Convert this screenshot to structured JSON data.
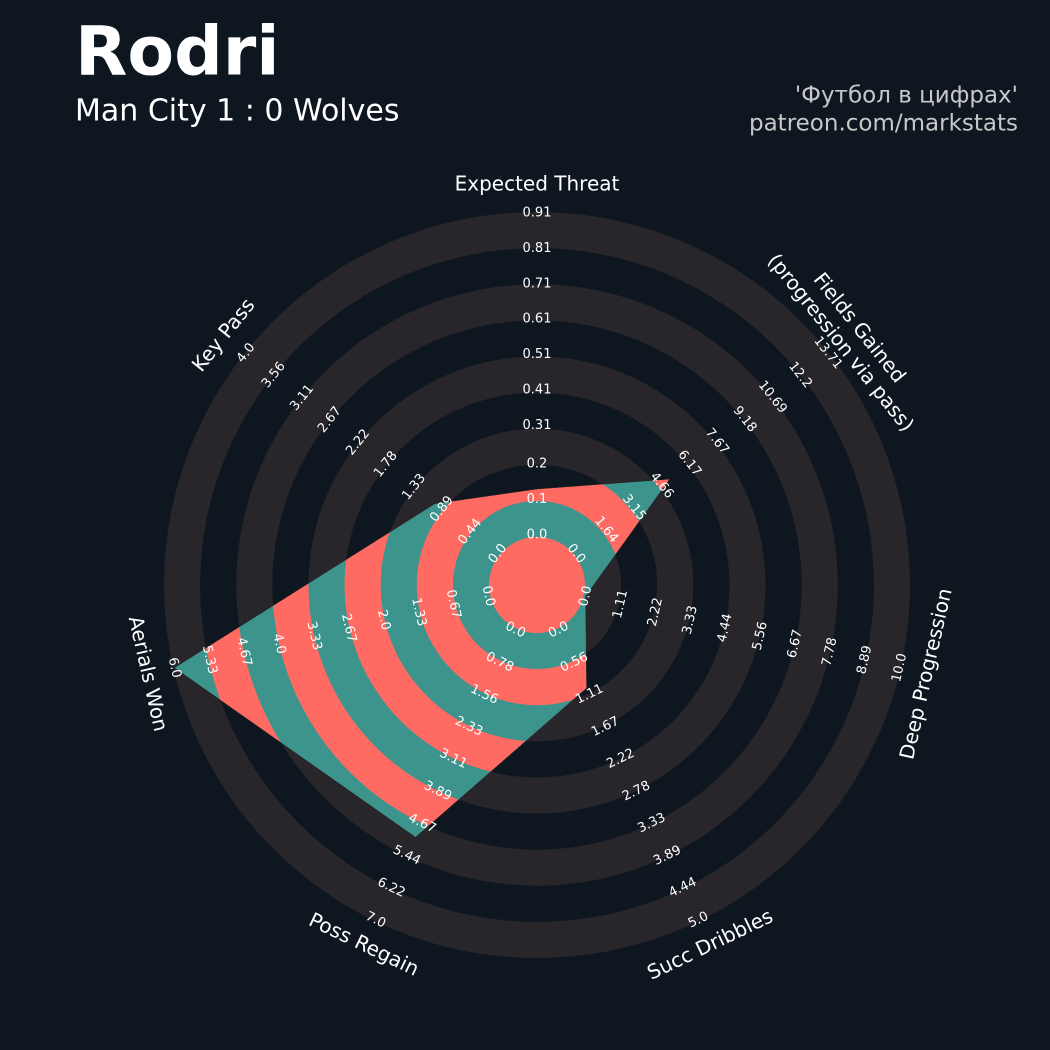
{
  "chart_data": {
    "type": "radar",
    "title": "Rodri",
    "subtitle": "Man City 1 : 0 Wolves",
    "credits": [
      "'Футбол в цифрах'",
      "patreon.com/markstats"
    ],
    "params": [
      "Expected Threat",
      "Fields Gained\n(progression via pass)",
      "Deep Progression",
      "Succ Dribbles",
      "Poss Regain",
      "Aerials Won",
      "Key Pass"
    ],
    "values": [
      0.13,
      5.1,
      0,
      1.0,
      5.0,
      6.0,
      1.0
    ],
    "ranges": [
      {
        "lim": [
          0,
          0.91
        ],
        "ticks": [
          {
            "value": 0,
            "label": "0.0"
          },
          0.1,
          0.2,
          0.31,
          0.41,
          0.51,
          0.61,
          0.71,
          0.81,
          0.91
        ]
      },
      {
        "lim": [
          0,
          13.71
        ],
        "ticks": [
          {
            "value": 0,
            "label": "0.0"
          },
          1.64,
          3.15,
          4.66,
          6.17,
          7.67,
          9.18,
          10.69,
          12.2,
          13.71
        ]
      },
      {
        "lim": [
          0,
          10
        ],
        "ticks": [
          {
            "value": 0,
            "label": "0.0"
          },
          1.11,
          2.22,
          3.33,
          4.44,
          5.56,
          6.67,
          7.78,
          8.89,
          {
            "value": 10,
            "label": "10.0"
          }
        ]
      },
      {
        "lim": [
          0,
          5
        ],
        "ticks": [
          {
            "value": 0,
            "label": "0.0"
          },
          0.56,
          1.11,
          1.67,
          2.22,
          2.78,
          3.33,
          3.89,
          4.44,
          {
            "value": 5,
            "label": "5.0"
          }
        ]
      },
      {
        "lim": [
          0,
          7
        ],
        "ticks": [
          {
            "value": 0,
            "label": "0.0"
          },
          0.78,
          1.56,
          2.33,
          3.11,
          3.89,
          4.67,
          5.44,
          6.22,
          {
            "value": 7,
            "label": "7.0"
          }
        ]
      },
      {
        "lim": [
          0,
          6
        ],
        "ticks": [
          {
            "value": 0,
            "label": "0.0"
          },
          0.67,
          1.33,
          {
            "value": 2,
            "label": "2.0"
          },
          2.67,
          3.33,
          {
            "value": 4,
            "label": "4.0"
          },
          4.67,
          5.33,
          {
            "value": 6,
            "label": "6.0"
          }
        ]
      },
      {
        "lim": [
          0,
          4
        ],
        "ticks": [
          {
            "value": 0,
            "label": "0.0"
          },
          0.44,
          0.89,
          1.33,
          1.78,
          2.22,
          2.67,
          3.11,
          3.56,
          {
            "value": 4,
            "label": "4.0"
          }
        ]
      }
    ],
    "colors": {
      "background": "#0e1720",
      "rings": "#28252b",
      "fill": "#3d948d",
      "fill_alt": "#ff6b63"
    }
  }
}
